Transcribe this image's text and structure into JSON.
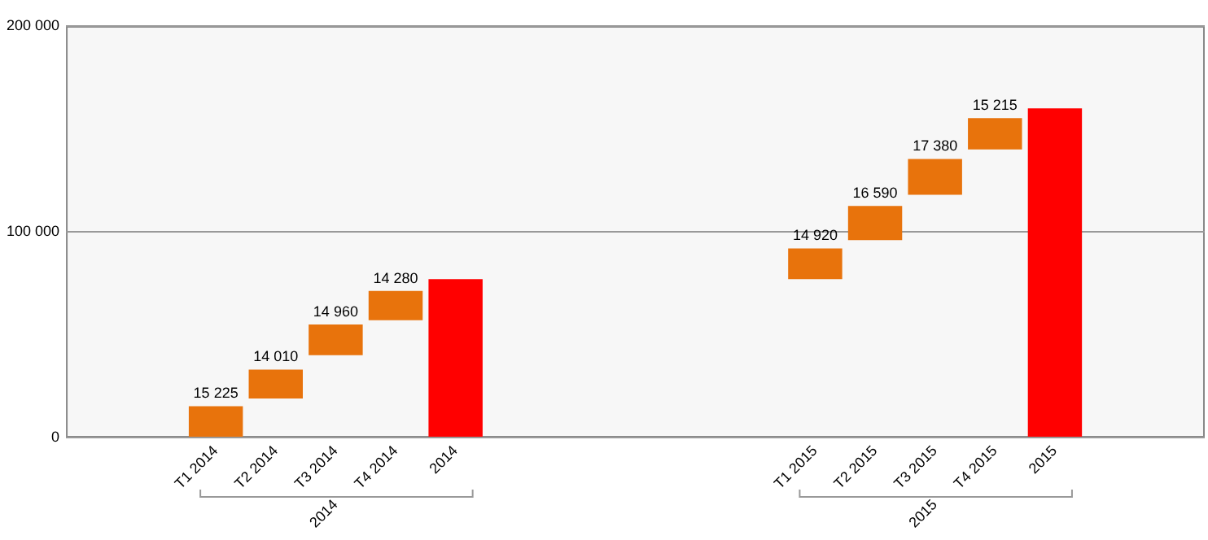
{
  "chart_data": {
    "type": "bar",
    "categories": [
      null,
      null,
      "T1 2014",
      "T2 2014",
      "T3 2014",
      "T4 2014",
      "2014",
      null,
      null,
      null,
      null,
      null,
      "T1 2015",
      "T2 2015",
      "T3 2015",
      "T4 2015",
      "2015",
      null,
      null
    ],
    "values": [
      null,
      null,
      15225,
      14010,
      14960,
      14280,
      77000,
      null,
      null,
      null,
      null,
      null,
      14920,
      16590,
      17380,
      15215,
      160000,
      null,
      null
    ],
    "base": [
      null,
      null,
      0,
      19000,
      40000,
      57000,
      0,
      null,
      null,
      null,
      null,
      null,
      77000,
      96000,
      118000,
      140000,
      0,
      null,
      null
    ],
    "colors": [
      null,
      null,
      "#e8730c",
      "#e8730c",
      "#e8730c",
      "#e8730c",
      "#ff0000",
      null,
      null,
      null,
      null,
      null,
      "#e8730c",
      "#e8730c",
      "#e8730c",
      "#e8730c",
      "#ff0000",
      null,
      null
    ],
    "value_labels": [
      null,
      null,
      "15 225",
      "14 010",
      "14 960",
      "14 280",
      null,
      null,
      null,
      null,
      null,
      null,
      "14 920",
      "16 590",
      "17 380",
      "15 215",
      null,
      null,
      null
    ],
    "ylim": [
      0,
      200000
    ],
    "yticks": [
      {
        "value": 0,
        "label": "0"
      },
      {
        "value": 100000,
        "label": "100 000"
      },
      {
        "value": 200000,
        "label": "200 000"
      }
    ],
    "grid": "y",
    "annotations": [
      "2014",
      "2015"
    ]
  }
}
